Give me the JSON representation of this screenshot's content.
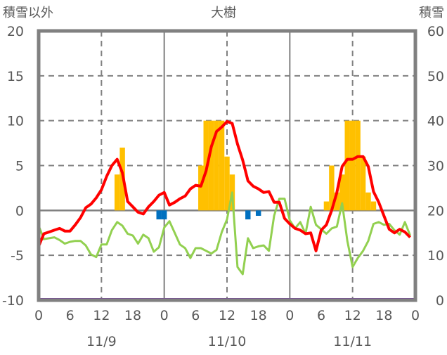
{
  "chart_data": {
    "type": "line",
    "title": "大樹",
    "ylabel_left": "積雪以外",
    "ylabel_right": "積雪",
    "ylim_left": [
      -10,
      20
    ],
    "ylim_right": [
      0,
      60
    ],
    "yticks_left": [
      "20",
      "15",
      "10",
      "5",
      "0",
      "-5",
      "-10"
    ],
    "yticks_left_values": [
      20,
      15,
      10,
      5,
      0,
      -5,
      -10
    ],
    "yticks_right": [
      "60",
      "50",
      "40",
      "30",
      "20",
      "10",
      "0"
    ],
    "yticks_right_values": [
      60,
      50,
      40,
      30,
      20,
      10,
      0
    ],
    "xlim_hours": [
      0,
      72
    ],
    "xticks": [
      "0",
      "6",
      "12",
      "18",
      "0",
      "6",
      "12",
      "18",
      "0",
      "6",
      "12",
      "18",
      "0"
    ],
    "day_labels": [
      "11/9",
      "11/10",
      "11/11"
    ],
    "grid": true,
    "colors": {
      "temp": "#ff0000",
      "other": "#92d050",
      "bar_pos": "#ffc000",
      "bar_neg": "#0070c0",
      "depth": "#7030a0",
      "axis": "#808080"
    },
    "series": [
      {
        "name": "red-line",
        "axis": "left",
        "values": [
          -4,
          -2.6,
          -2.4,
          -2.2,
          -2.0,
          -2.3,
          -2.3,
          -1.6,
          -0.8,
          0.3,
          0.7,
          1.4,
          2.3,
          3.8,
          5.0,
          5.7,
          4.2,
          1.0,
          0.4,
          -0.2,
          -0.4,
          0.4,
          1.0,
          1.7,
          2.0,
          0.6,
          0.9,
          1.3,
          1.6,
          2.4,
          2.8,
          2.7,
          4.4,
          7.1,
          8.8,
          9.3,
          9.9,
          9.7,
          7.4,
          5.6,
          3.3,
          2.7,
          2.4,
          2.0,
          2.1,
          0.9,
          0.9,
          -0.9,
          -1.5,
          -2.0,
          -2.2,
          -2.6,
          -2.5,
          -4.5,
          -2.2,
          -1.6,
          0,
          2.0,
          4.9,
          5.7,
          5.7,
          6.0,
          6.0,
          4.9,
          2.1,
          0.9,
          -0.6,
          -2.1,
          -2.5,
          -2.1,
          -2.4,
          -3.0
        ]
      },
      {
        "name": "green-line",
        "axis": "left",
        "values": [
          -1.7,
          -3.2,
          -3.1,
          -3.0,
          -3.3,
          -3.7,
          -3.5,
          -3.4,
          -3.4,
          -3.9,
          -4.9,
          -5.2,
          -3.8,
          -3.8,
          -2.2,
          -1.3,
          -1.7,
          -2.6,
          -2.8,
          -3.7,
          -2.7,
          -3.1,
          -4.6,
          -4.1,
          -1.9,
          -1.2,
          -2.5,
          -3.8,
          -4.2,
          -5.3,
          -4.2,
          -4.2,
          -4.5,
          -4.8,
          -4.4,
          -2.4,
          -1.0,
          2.0,
          -6.3,
          -7.1,
          -3.1,
          -4.2,
          -4.0,
          -3.9,
          -4.5,
          -0.6,
          1.3,
          1.3,
          -1.1,
          -2.0,
          -1.3,
          -2.6,
          0.4,
          -1.6,
          -2.1,
          -2.6,
          -2.0,
          -1.8,
          0.8,
          -3.4,
          -6.3,
          -5.3,
          -4.5,
          -3.4,
          -1.5,
          -1.3,
          -1.6,
          -1.5,
          -2.2,
          -2.7,
          -1.3,
          -2.8
        ]
      },
      {
        "name": "bars",
        "axis": "left",
        "type": "bar",
        "points": [
          [
            15,
            4
          ],
          [
            16,
            7
          ],
          [
            23,
            -1
          ],
          [
            24,
            -1
          ],
          [
            31,
            5
          ],
          [
            32,
            10
          ],
          [
            33,
            10
          ],
          [
            34,
            10
          ],
          [
            35,
            10
          ],
          [
            36,
            6
          ],
          [
            37,
            4
          ],
          [
            40,
            -1
          ],
          [
            42,
            -0.6
          ],
          [
            55,
            1
          ],
          [
            56,
            5
          ],
          [
            57,
            2
          ],
          [
            58,
            4
          ],
          [
            59,
            10
          ],
          [
            60,
            10
          ],
          [
            61,
            10
          ],
          [
            62,
            6
          ],
          [
            63,
            2
          ],
          [
            64,
            1
          ]
        ]
      },
      {
        "name": "積雪",
        "axis": "right",
        "values_constant": 0
      }
    ]
  }
}
